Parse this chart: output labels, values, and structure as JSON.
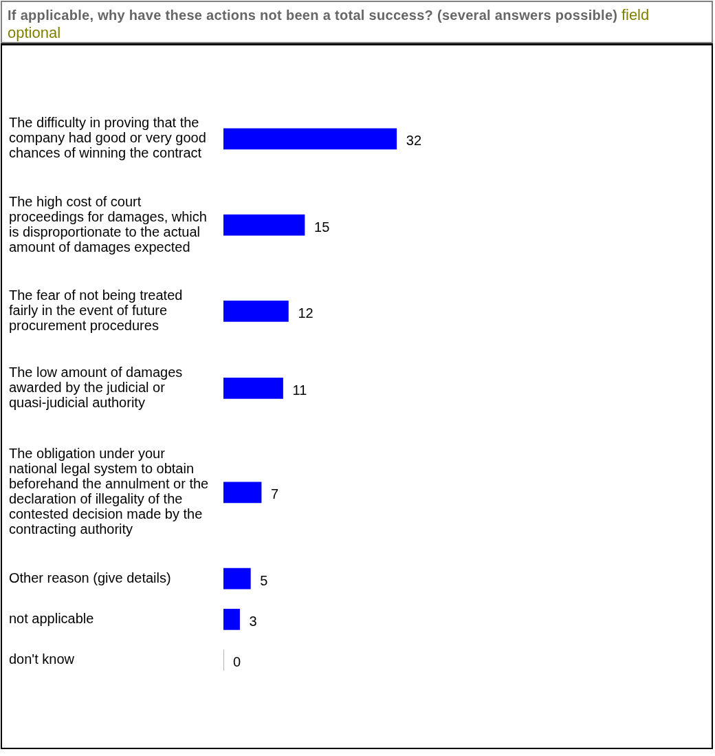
{
  "chart_data": {
    "type": "bar",
    "orientation": "horizontal",
    "title": "If applicable, why have these actions not been a total success? (several answers possible)",
    "subtitle": "field optional",
    "categories": [
      "The difficulty in proving that the company had good or very good chances of winning the contract",
      "The high cost of court proceedings for damages, which is disproportionate to the actual amount of damages expected",
      "The fear of not being treated fairly in the event of future procurement procedures",
      "The low amount of damages awarded by the judicial or quasi-judicial authority",
      "The obligation under your national legal system to obtain beforehand the annulment or the declaration of illegality of the contested decision made by the contracting authority",
      "Other reason (give details)",
      "not applicable",
      "don't know"
    ],
    "values": [
      32,
      15,
      12,
      11,
      7,
      5,
      3,
      0
    ],
    "color": "#0000ff",
    "data_labels": true,
    "grid": false,
    "legend": false,
    "tick_labels": "y"
  }
}
